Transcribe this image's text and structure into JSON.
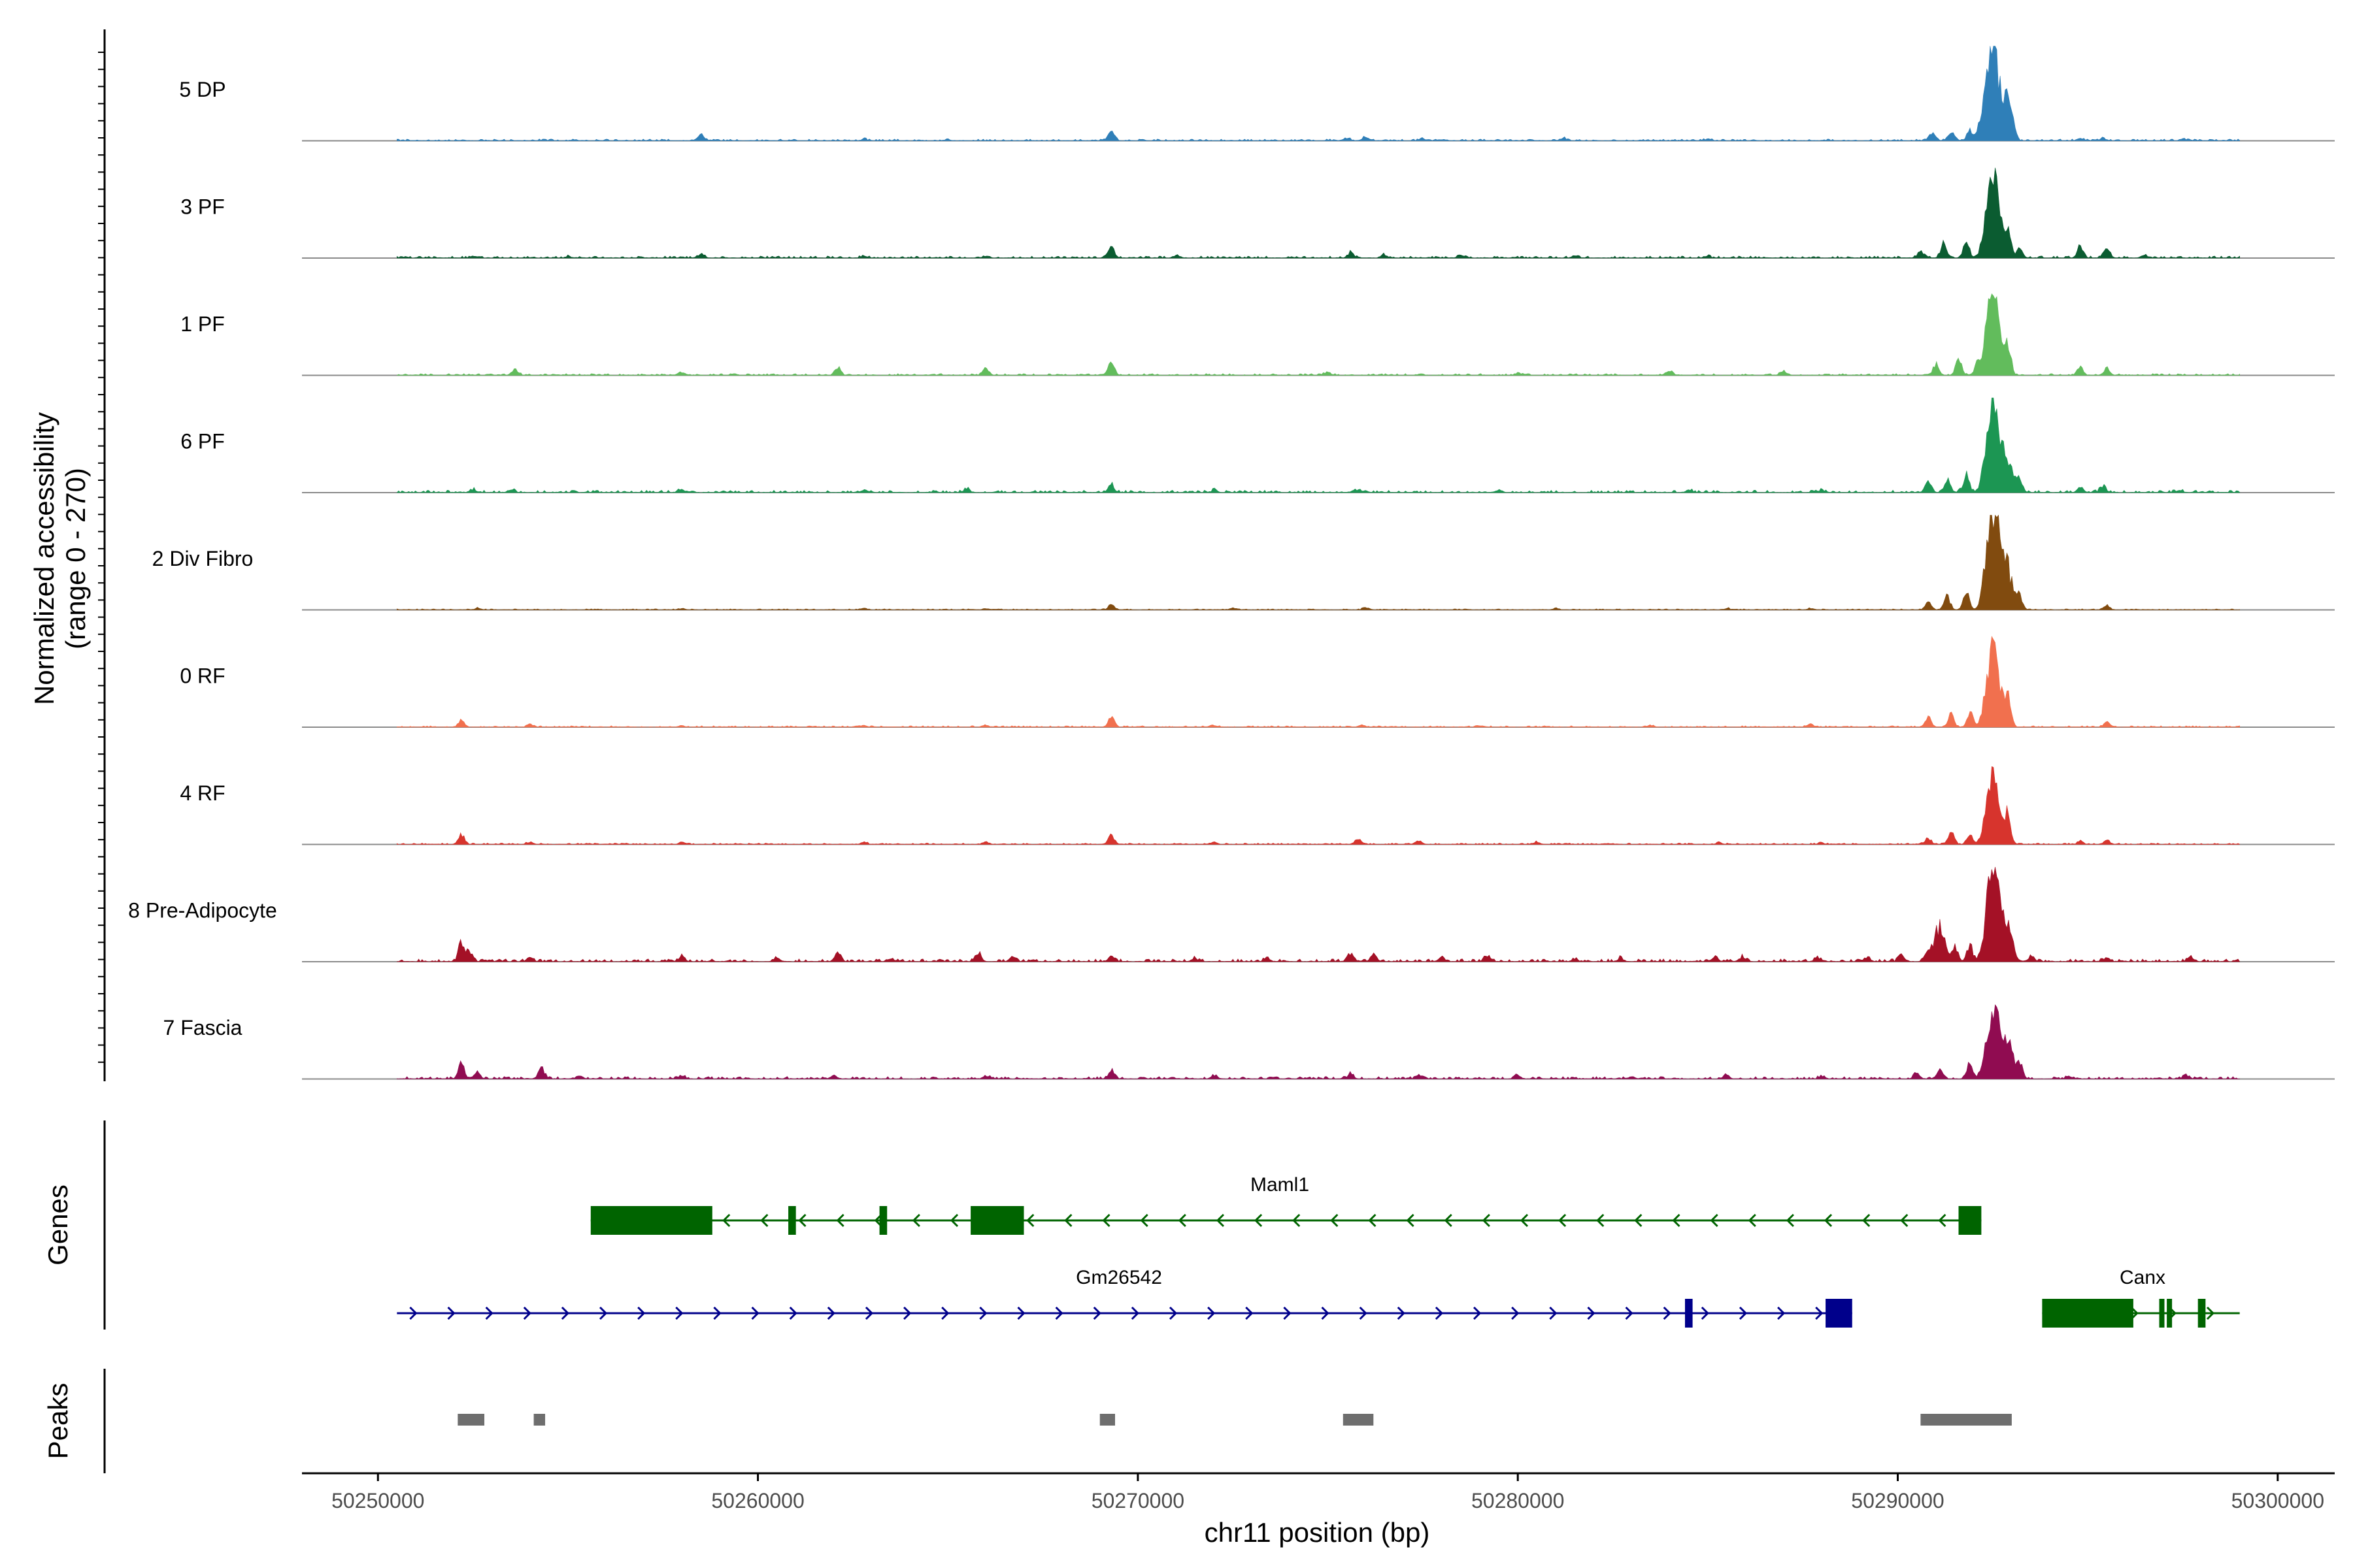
{
  "chart_data": {
    "type": "area",
    "chromosome": "chr11",
    "xlabel": "chr11 position (bp)",
    "ylabel_line1": "Normalized accessibility",
    "ylabel_line2": "(range 0 - 270)",
    "y_range": [
      0,
      270
    ],
    "xlim": [
      50248000,
      50301500
    ],
    "x_ticks": [
      50250000,
      50260000,
      50270000,
      50280000,
      50290000,
      50300000
    ],
    "x_tick_labels": [
      "50250000",
      "50260000",
      "50270000",
      "50280000",
      "50290000",
      "50300000"
    ],
    "track_extent": [
      50250500,
      50299000
    ],
    "tracks": [
      {
        "label": "5 DP",
        "color": "#2f7fb8",
        "noise": 5,
        "peaks": [
          [
            50252200,
            2
          ],
          [
            50254200,
            1
          ],
          [
            50258500,
            16
          ],
          [
            50262800,
            5
          ],
          [
            50265000,
            3
          ],
          [
            50269300,
            30
          ],
          [
            50275500,
            8
          ],
          [
            50276000,
            10
          ],
          [
            50277500,
            6
          ],
          [
            50281200,
            6
          ],
          [
            50285000,
            4
          ],
          [
            50290900,
            22
          ],
          [
            50291400,
            28
          ],
          [
            50291900,
            30
          ],
          [
            50292300,
            95
          ],
          [
            50292500,
            245
          ],
          [
            50292800,
            120
          ],
          [
            50293000,
            60
          ],
          [
            50294800,
            6
          ],
          [
            50295400,
            8
          ],
          [
            50297500,
            5
          ]
        ]
      },
      {
        "label": "3 PF",
        "color": "#0b5c31",
        "noise": 6,
        "peaks": [
          [
            50252500,
            6
          ],
          [
            50255000,
            4
          ],
          [
            50258500,
            12
          ],
          [
            50262800,
            4
          ],
          [
            50266000,
            5
          ],
          [
            50269300,
            32
          ],
          [
            50271000,
            6
          ],
          [
            50275600,
            14
          ],
          [
            50276500,
            8
          ],
          [
            50278500,
            6
          ],
          [
            50281500,
            5
          ],
          [
            50285000,
            5
          ],
          [
            50290600,
            18
          ],
          [
            50291200,
            40
          ],
          [
            50291800,
            45
          ],
          [
            50292400,
            170
          ],
          [
            50292600,
            170
          ],
          [
            50292900,
            80
          ],
          [
            50293200,
            30
          ],
          [
            50294800,
            35
          ],
          [
            50295500,
            30
          ],
          [
            50296500,
            8
          ]
        ]
      },
      {
        "label": "1 PF",
        "color": "#62bc5c",
        "noise": 5,
        "peaks": [
          [
            50253600,
            16
          ],
          [
            50258000,
            6
          ],
          [
            50262100,
            22
          ],
          [
            50266000,
            20
          ],
          [
            50269300,
            34
          ],
          [
            50275000,
            8
          ],
          [
            50280000,
            6
          ],
          [
            50284000,
            10
          ],
          [
            50287000,
            12
          ],
          [
            50291000,
            30
          ],
          [
            50291600,
            45
          ],
          [
            50292100,
            30
          ],
          [
            50292400,
            150
          ],
          [
            50292600,
            180
          ],
          [
            50292900,
            80
          ],
          [
            50294800,
            22
          ],
          [
            50295500,
            20
          ]
        ]
      },
      {
        "label": "6 PF",
        "color": "#1c9653",
        "noise": 7,
        "peaks": [
          [
            50252500,
            8
          ],
          [
            50253500,
            9
          ],
          [
            50258000,
            8
          ],
          [
            50262800,
            6
          ],
          [
            50265500,
            10
          ],
          [
            50269300,
            24
          ],
          [
            50272000,
            6
          ],
          [
            50275800,
            8
          ],
          [
            50279500,
            6
          ],
          [
            50284500,
            6
          ],
          [
            50288000,
            5
          ],
          [
            50290800,
            32
          ],
          [
            50291300,
            36
          ],
          [
            50291800,
            48
          ],
          [
            50292400,
            175
          ],
          [
            50292600,
            175
          ],
          [
            50292900,
            90
          ],
          [
            50293200,
            35
          ],
          [
            50294800,
            12
          ],
          [
            50295400,
            20
          ],
          [
            50297400,
            6
          ]
        ]
      },
      {
        "label": "2 Div Fibro",
        "color": "#814b0f",
        "noise": 3,
        "peaks": [
          [
            50252600,
            4
          ],
          [
            50258000,
            3
          ],
          [
            50262800,
            4
          ],
          [
            50266000,
            3
          ],
          [
            50269300,
            14
          ],
          [
            50272500,
            4
          ],
          [
            50276000,
            6
          ],
          [
            50281000,
            4
          ],
          [
            50285500,
            4
          ],
          [
            50287700,
            4
          ],
          [
            50290800,
            22
          ],
          [
            50291300,
            38
          ],
          [
            50291800,
            48
          ],
          [
            50292400,
            170
          ],
          [
            50292600,
            220
          ],
          [
            50292900,
            110
          ],
          [
            50293200,
            40
          ],
          [
            50295500,
            12
          ]
        ]
      },
      {
        "label": "0 RF",
        "color": "#f1704e",
        "noise": 4,
        "peaks": [
          [
            50252200,
            20
          ],
          [
            50254000,
            6
          ],
          [
            50258000,
            4
          ],
          [
            50262800,
            4
          ],
          [
            50266000,
            5
          ],
          [
            50269300,
            28
          ],
          [
            50272000,
            4
          ],
          [
            50275900,
            6
          ],
          [
            50279000,
            4
          ],
          [
            50283500,
            4
          ],
          [
            50287700,
            8
          ],
          [
            50290800,
            25
          ],
          [
            50291400,
            35
          ],
          [
            50291900,
            40
          ],
          [
            50292400,
            130
          ],
          [
            50292600,
            155
          ],
          [
            50292900,
            80
          ],
          [
            50295500,
            14
          ]
        ]
      },
      {
        "label": "4 RF",
        "color": "#d7342d",
        "noise": 4,
        "peaks": [
          [
            50252200,
            28
          ],
          [
            50254000,
            6
          ],
          [
            50258000,
            5
          ],
          [
            50262800,
            6
          ],
          [
            50266000,
            8
          ],
          [
            50269300,
            22
          ],
          [
            50272000,
            5
          ],
          [
            50275800,
            16
          ],
          [
            50277400,
            10
          ],
          [
            50280500,
            6
          ],
          [
            50285300,
            6
          ],
          [
            50288000,
            4
          ],
          [
            50290800,
            18
          ],
          [
            50291400,
            34
          ],
          [
            50291900,
            30
          ],
          [
            50292400,
            120
          ],
          [
            50292600,
            140
          ],
          [
            50292900,
            80
          ],
          [
            50294800,
            8
          ],
          [
            50295500,
            10
          ]
        ]
      },
      {
        "label": "8 Pre-Adipocyte",
        "color": "#a41126",
        "noise": 8,
        "peaks": [
          [
            50252200,
            52
          ],
          [
            50252400,
            30
          ],
          [
            50254000,
            10
          ],
          [
            50258000,
            12
          ],
          [
            50260500,
            10
          ],
          [
            50262100,
            22
          ],
          [
            50263500,
            8
          ],
          [
            50265800,
            22
          ],
          [
            50266700,
            12
          ],
          [
            50269300,
            14
          ],
          [
            50271500,
            10
          ],
          [
            50273400,
            8
          ],
          [
            50275600,
            24
          ],
          [
            50276200,
            20
          ],
          [
            50278000,
            12
          ],
          [
            50279200,
            18
          ],
          [
            50281500,
            8
          ],
          [
            50282700,
            10
          ],
          [
            50285200,
            14
          ],
          [
            50285900,
            12
          ],
          [
            50287900,
            12
          ],
          [
            50289200,
            12
          ],
          [
            50290100,
            16
          ],
          [
            50290800,
            28
          ],
          [
            50291100,
            95
          ],
          [
            50291500,
            35
          ],
          [
            50291900,
            45
          ],
          [
            50292400,
            150
          ],
          [
            50292600,
            200
          ],
          [
            50292900,
            85
          ],
          [
            50293500,
            12
          ],
          [
            50295500,
            10
          ],
          [
            50297700,
            12
          ]
        ]
      },
      {
        "label": "7 Fascia",
        "color": "#900c51",
        "noise": 7,
        "peaks": [
          [
            50252200,
            42
          ],
          [
            50252600,
            20
          ],
          [
            50254300,
            30
          ],
          [
            50255300,
            10
          ],
          [
            50258000,
            8
          ],
          [
            50262000,
            10
          ],
          [
            50266000,
            8
          ],
          [
            50269300,
            22
          ],
          [
            50272000,
            8
          ],
          [
            50275600,
            14
          ],
          [
            50277400,
            10
          ],
          [
            50280000,
            8
          ],
          [
            50283000,
            6
          ],
          [
            50285500,
            8
          ],
          [
            50288000,
            8
          ],
          [
            50290500,
            16
          ],
          [
            50291100,
            28
          ],
          [
            50291900,
            40
          ],
          [
            50292400,
            110
          ],
          [
            50292600,
            130
          ],
          [
            50292900,
            95
          ],
          [
            50293200,
            45
          ],
          [
            50294500,
            6
          ],
          [
            50297600,
            10
          ]
        ]
      }
    ],
    "genes_panel_label": "Genes",
    "genes": [
      {
        "name": "Maml1",
        "strand": "-",
        "color": "#006400",
        "start": 50255600,
        "end": 50292200,
        "exons": [
          [
            50255600,
            50258800
          ],
          [
            50260800,
            50261000
          ],
          [
            50263200,
            50263400
          ],
          [
            50265600,
            50267000
          ],
          [
            50291600,
            50292200
          ]
        ]
      },
      {
        "name": "Gm26542",
        "strand": "+",
        "color": "#00008b",
        "start": 50250500,
        "end": 50288800,
        "exons": [
          [
            50284400,
            50284600
          ],
          [
            50288100,
            50288800
          ]
        ]
      },
      {
        "name": "Canx",
        "strand": "+",
        "color": "#006400",
        "start": 50293800,
        "end": 50299000,
        "exons": [
          [
            50293800,
            50296200
          ],
          [
            50296900,
            50297000
          ],
          [
            50297100,
            50297200
          ],
          [
            50297900,
            50298100
          ]
        ]
      }
    ],
    "peaks_panel_label": "Peaks",
    "peak_regions": [
      [
        50252100,
        50252800
      ],
      [
        50254100,
        50254400
      ],
      [
        50269000,
        50269400
      ],
      [
        50275400,
        50276200
      ],
      [
        50290600,
        50293000
      ]
    ],
    "peak_color": "#6e6e6e"
  }
}
